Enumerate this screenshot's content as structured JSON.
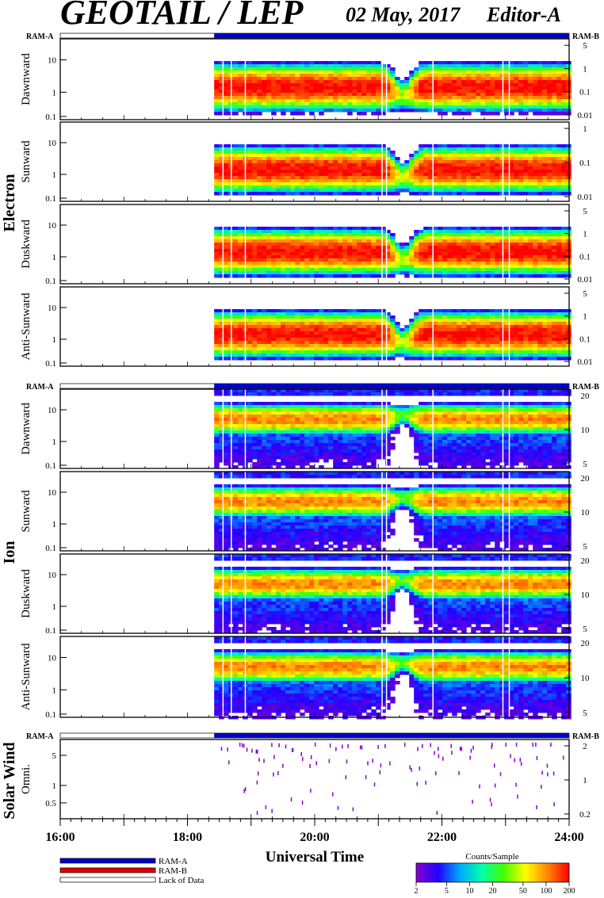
{
  "header": {
    "title": "GEOTAIL / LEP",
    "date": "02 May, 2017",
    "editor": "Editor-A"
  },
  "colors": {
    "ram_a": "#0000cc",
    "ram_b": "#dd0000",
    "background": "#ffffff",
    "frame": "#000000"
  },
  "chart_data": {
    "type": "heatmap",
    "xlabel": "Universal Time",
    "x_ticks": [
      "16:00",
      "18:00",
      "20:00",
      "22:00",
      "24:00"
    ],
    "x_range_hours": [
      16,
      24
    ],
    "data_start_hour": 18.42,
    "data_gaps_hours": [
      18.55,
      18.68,
      18.9,
      21.05,
      21.12,
      21.85,
      22.95,
      23.05
    ],
    "ram_a_label": "RAM-A",
    "ram_b_label": "RAM-B",
    "groups": [
      {
        "name": "Electron",
        "panels": [
          {
            "label": "Dawnward",
            "left_ticks": [
              "10",
              "1",
              "0.1"
            ],
            "right_ticks": [
              "5",
              "1",
              "0.1",
              "0.01"
            ]
          },
          {
            "label": "Sunward",
            "left_ticks": [
              "10",
              "1",
              "0.1"
            ],
            "right_ticks": [
              "1",
              "0.1",
              "0.01"
            ]
          },
          {
            "label": "Duskward",
            "left_ticks": [
              "10",
              "1",
              "0.1"
            ],
            "right_ticks": [
              "5",
              "1",
              "0.1",
              "0.01"
            ]
          },
          {
            "label": "Anti-Sunward",
            "left_ticks": [
              "10",
              "1",
              "0.1"
            ],
            "right_ticks": [
              "5",
              "1",
              "0.1",
              "0.01"
            ]
          }
        ]
      },
      {
        "name": "Ion",
        "panels": [
          {
            "label": "Dawnward",
            "left_ticks": [
              "10",
              "1",
              "0.1"
            ],
            "right_ticks": [
              "20",
              "10",
              "5"
            ]
          },
          {
            "label": "Sunward",
            "left_ticks": [
              "10",
              "1",
              "0.1"
            ],
            "right_ticks": [
              "20",
              "10",
              "5"
            ]
          },
          {
            "label": "Duskward",
            "left_ticks": [
              "10",
              "1",
              "0.1"
            ],
            "right_ticks": [
              "20",
              "10",
              "5"
            ]
          },
          {
            "label": "Anti-Sunward",
            "left_ticks": [
              "10",
              "1",
              "0.1"
            ],
            "right_ticks": [
              "20",
              "10",
              "5"
            ]
          }
        ]
      },
      {
        "name": "Solar Wind",
        "panels": [
          {
            "label": "Omni.",
            "left_ticks": [
              "5",
              "1",
              "0.5"
            ],
            "right_ticks": [
              "2",
              "1",
              "0.2"
            ]
          }
        ]
      }
    ],
    "legend": {
      "items": [
        "RAM-A",
        "RAM-B",
        "Lack of Data"
      ]
    },
    "colorbar": {
      "title": "Counts/Sample",
      "ticks": [
        "2",
        "5",
        "10",
        "20",
        "50",
        "100",
        "200"
      ],
      "colors": [
        "#8800cc",
        "#2200ff",
        "#00aaff",
        "#00ffaa",
        "#44ff00",
        "#ffff00",
        "#ff8800",
        "#ff0000"
      ]
    }
  }
}
